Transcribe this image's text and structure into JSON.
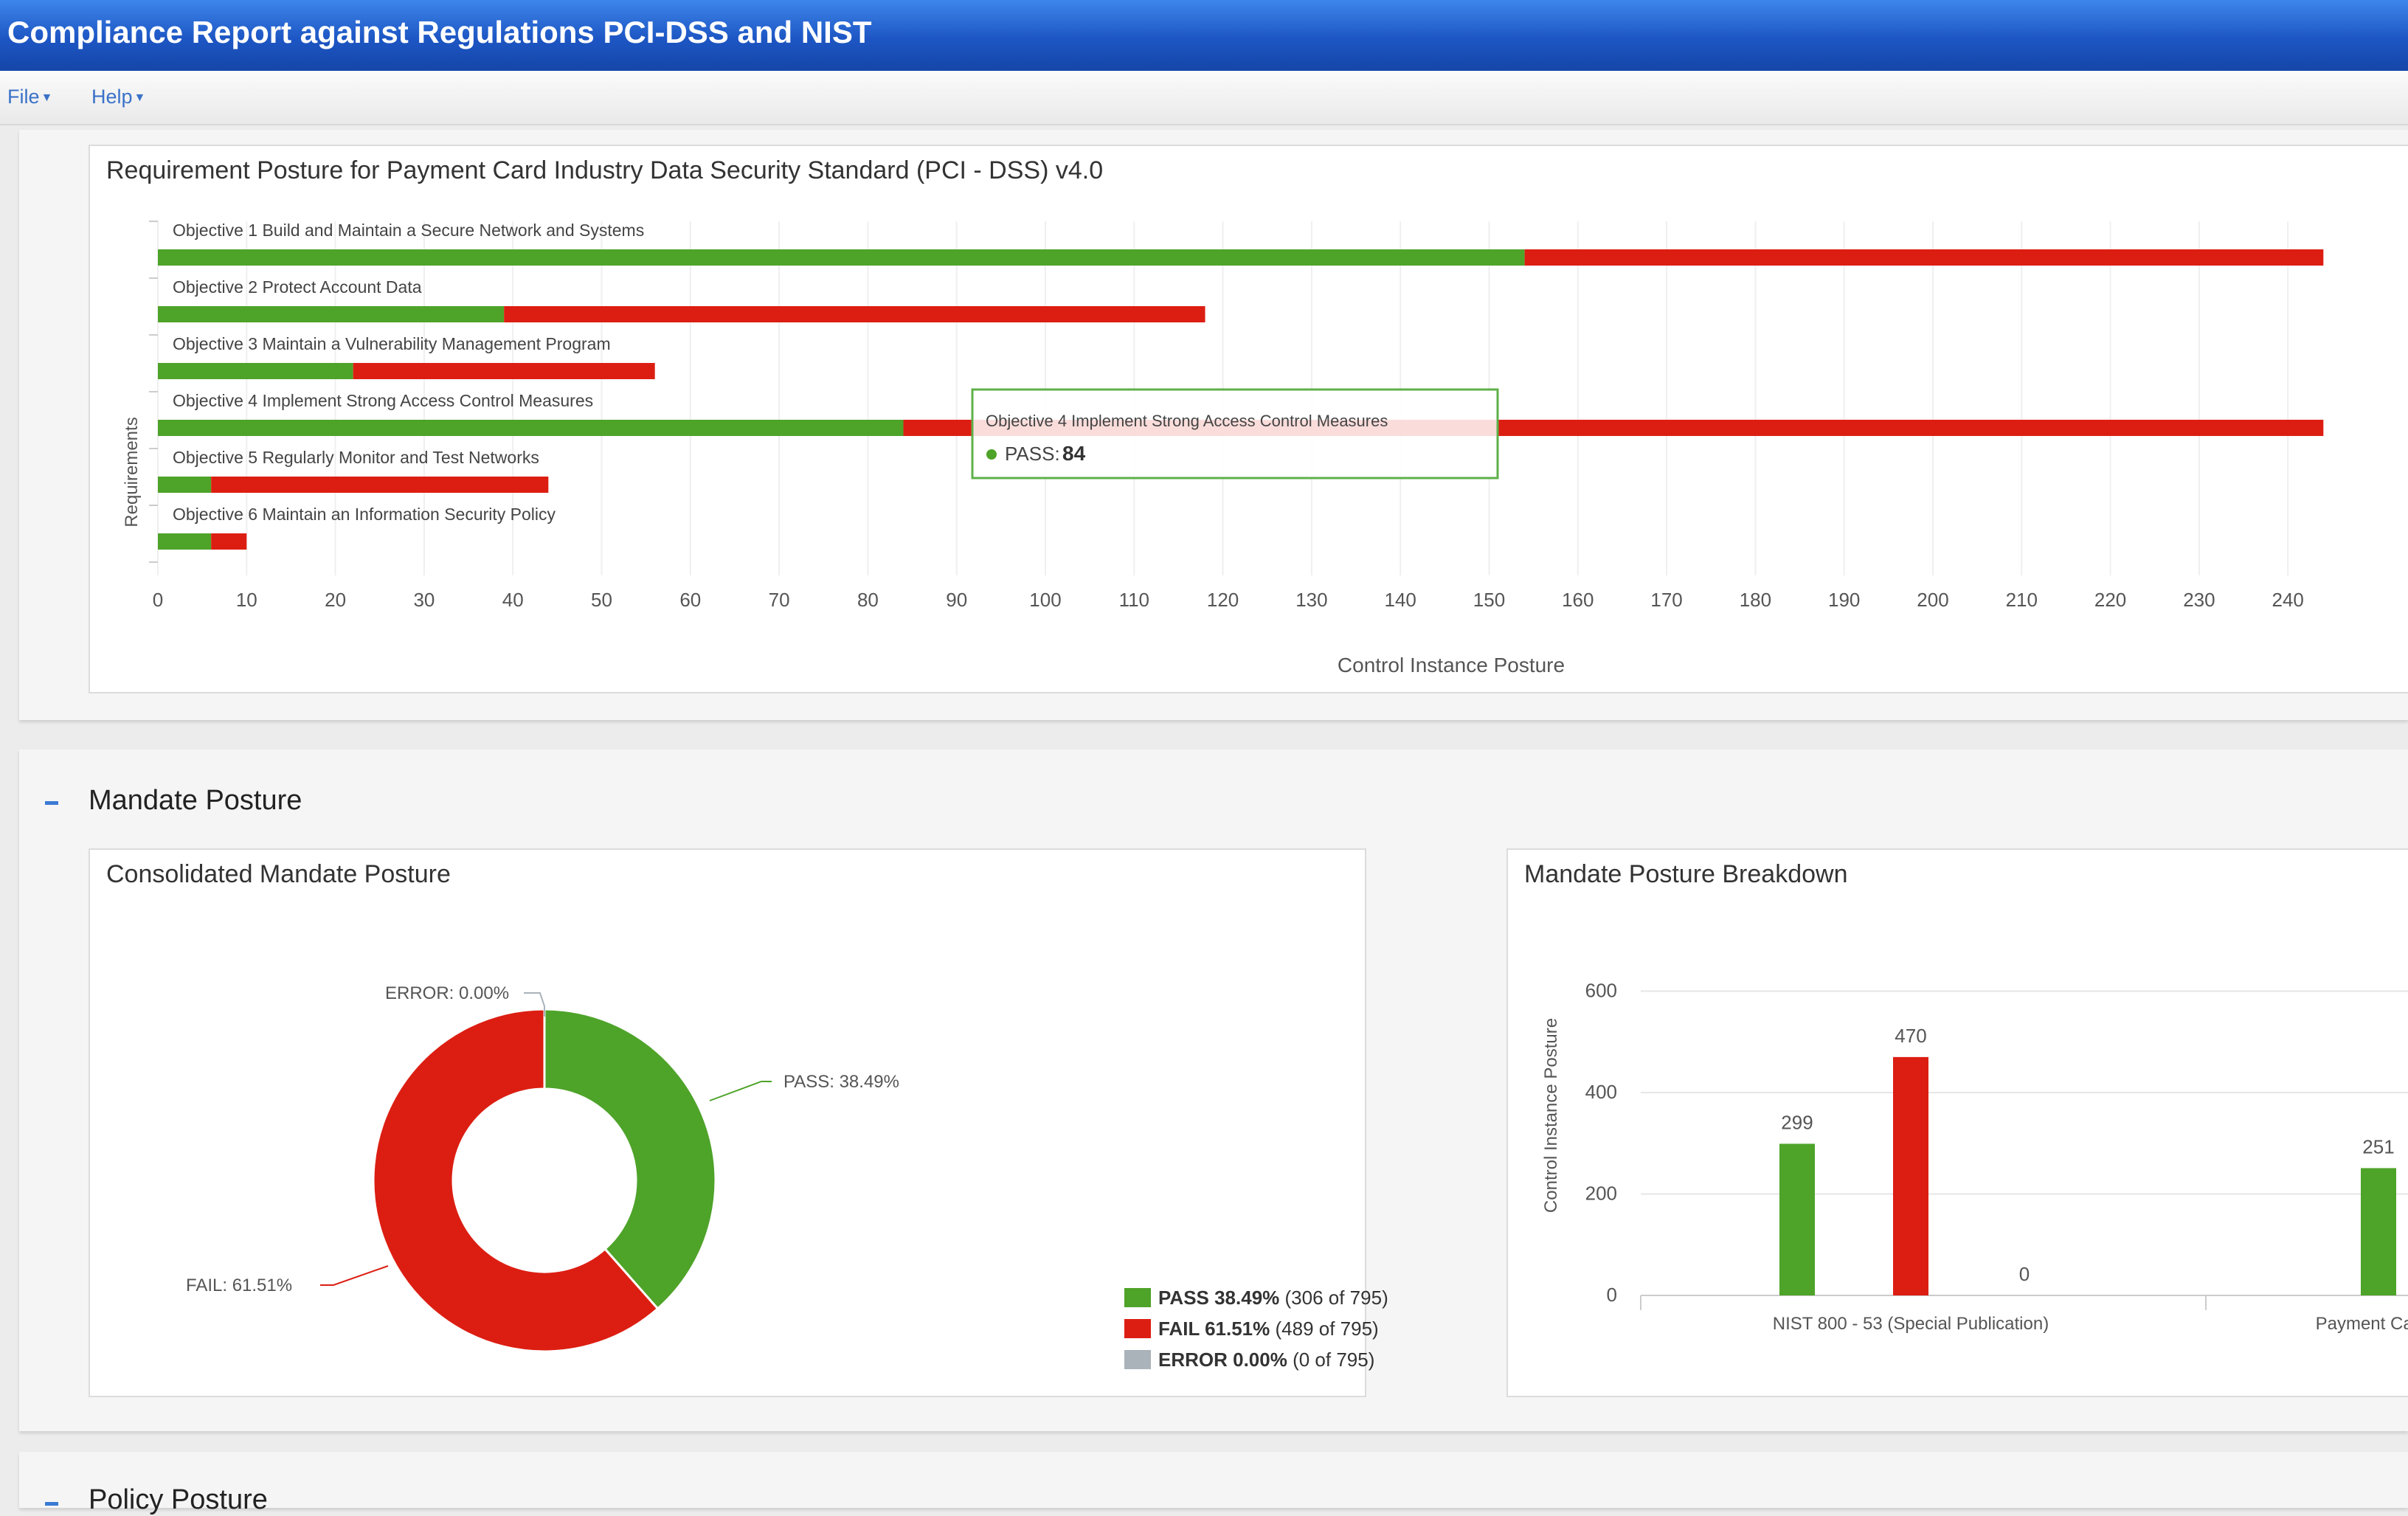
{
  "window": {
    "title": "Compliance Report against Regulations PCI-DSS and NIST"
  },
  "menu": {
    "file": "File",
    "help": "Help"
  },
  "colors": {
    "pass": "#4ea329",
    "fail": "#dc1e12",
    "error": "#aab3ba",
    "title_bar": "#1d56c4"
  },
  "requirement_chart": {
    "title": "Requirement Posture for Payment Card Industry Data Security Standard (PCI - DSS) v4.0",
    "ylabel": "Requirements",
    "xlabel": "Control Instance Posture",
    "tooltip": {
      "title": "Objective 4 Implement Strong Access Control Measures",
      "label": "PASS:",
      "value": "84"
    }
  },
  "mandate_section": {
    "heading": "Mandate Posture",
    "consolidated": {
      "title": "Consolidated Mandate Posture",
      "slice_labels": {
        "error": "ERROR: 0.00%",
        "pass": "PASS: 38.49%",
        "fail": "FAIL: 61.51%"
      },
      "legend": [
        {
          "strong": "PASS 38.49%",
          "rest": "(306 of 795)"
        },
        {
          "strong": "FAIL 61.51%",
          "rest": "(489 of 795)"
        },
        {
          "strong": "ERROR 0.00%",
          "rest": "(0 of 795)"
        }
      ]
    },
    "breakdown": {
      "title": "Mandate Posture Breakdown",
      "ylabel": "Control Instance Posture"
    }
  },
  "policy_section": {
    "heading": "Policy Posture"
  },
  "chart_data": [
    {
      "type": "bar",
      "orientation": "horizontal",
      "stacked": true,
      "title": "Requirement Posture for Payment Card Industry Data Security Standard (PCI - DSS) v4.0",
      "xlabel": "Control Instance Posture",
      "ylabel": "Requirements",
      "xlim": [
        0,
        240
      ],
      "xticks": [
        0,
        10,
        20,
        30,
        40,
        50,
        60,
        70,
        80,
        90,
        100,
        110,
        120,
        130,
        140,
        150,
        160,
        170,
        180,
        190,
        200,
        210,
        220,
        230,
        240
      ],
      "grid": true,
      "categories": [
        "Objective 1 Build and Maintain a Secure Network and Systems",
        "Objective 2 Protect Account Data",
        "Objective 3 Maintain a Vulnerability Management Program",
        "Objective 4 Implement Strong Access Control Measures",
        "Objective 5 Regularly Monitor and Test Networks",
        "Objective 6 Maintain an Information Security Policy"
      ],
      "series": [
        {
          "name": "PASS",
          "color": "#4ea329",
          "values": [
            154,
            39,
            22,
            84,
            6,
            6
          ]
        },
        {
          "name": "FAIL",
          "color": "#dc1e12",
          "values": [
            90,
            79,
            34,
            160,
            38,
            4
          ]
        }
      ]
    },
    {
      "type": "pie",
      "variant": "donut",
      "title": "Consolidated Mandate Posture",
      "slices": [
        {
          "name": "PASS",
          "value": 306,
          "percent": 38.49,
          "color": "#4ea329"
        },
        {
          "name": "FAIL",
          "value": 489,
          "percent": 61.51,
          "color": "#dc1e12"
        },
        {
          "name": "ERROR",
          "value": 0,
          "percent": 0.0,
          "color": "#aab3ba"
        }
      ],
      "legend_position": "bottom-right"
    },
    {
      "type": "bar",
      "title": "Mandate Posture Breakdown",
      "ylabel": "Control Instance Posture",
      "ylim": [
        0,
        600
      ],
      "yticks": [
        0,
        200,
        400,
        600
      ],
      "categories": [
        "NIST 800 - 53 (Special Publication)",
        "Payment Card Indus"
      ],
      "series": [
        {
          "name": "PASS",
          "color": "#4ea329",
          "values": [
            299,
            251
          ]
        },
        {
          "name": "FAIL",
          "color": "#dc1e12",
          "values": [
            470,
            null
          ]
        },
        {
          "name": "ERROR",
          "color": "#aab3ba",
          "values": [
            0,
            null
          ]
        }
      ],
      "data_labels": true
    }
  ]
}
